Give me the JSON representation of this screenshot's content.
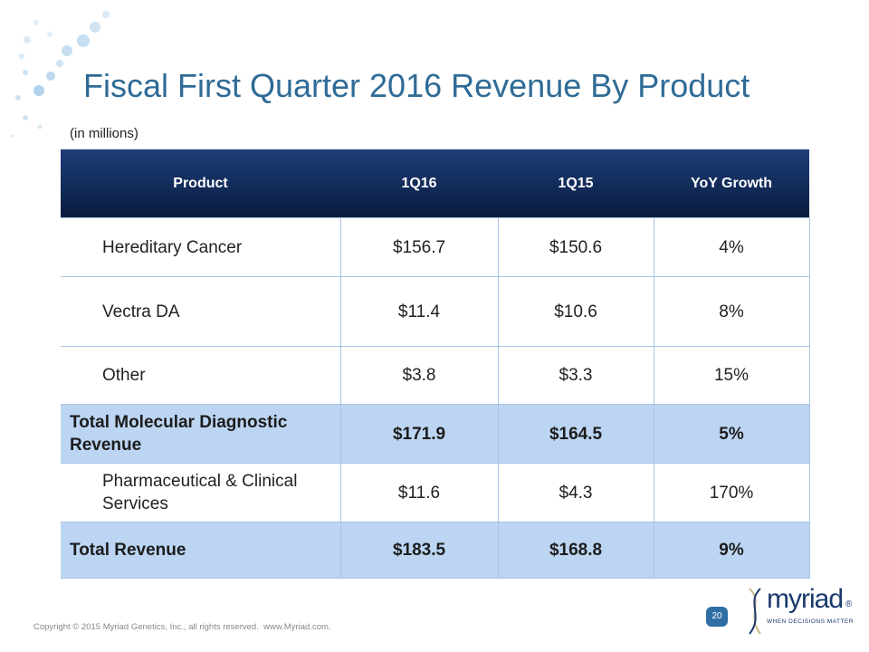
{
  "header": {
    "title": "Fiscal First Quarter 2016 Revenue By Product",
    "subtitle": "(in millions)"
  },
  "table": {
    "columns": [
      "Product",
      "1Q16",
      "1Q15",
      "YoY Growth"
    ],
    "rows": [
      [
        "Hereditary Cancer",
        "$156.7",
        "$150.6",
        "4%"
      ],
      [
        "Vectra DA",
        "$11.4",
        "$10.6",
        "8%"
      ],
      [
        "Other",
        "$3.8",
        "$3.3",
        "15%"
      ],
      [
        "Total Molecular Diagnostic Revenue",
        "$171.9",
        "$164.5",
        "5%"
      ],
      [
        "Pharmaceutical & Clinical Services",
        "$11.6",
        "$4.3",
        "170%"
      ],
      [
        "Total Revenue",
        "$183.5",
        "$168.8",
        "9%"
      ]
    ]
  },
  "footer": {
    "copyright": "Copyright © 2015 Myriad Genetics, Inc., all rights reserved.  www.Myriad.com.",
    "page_number": "20"
  },
  "logo": {
    "name": "myriad",
    "registered": "®",
    "tagline": "WHEN DECISIONS MATTER"
  }
}
